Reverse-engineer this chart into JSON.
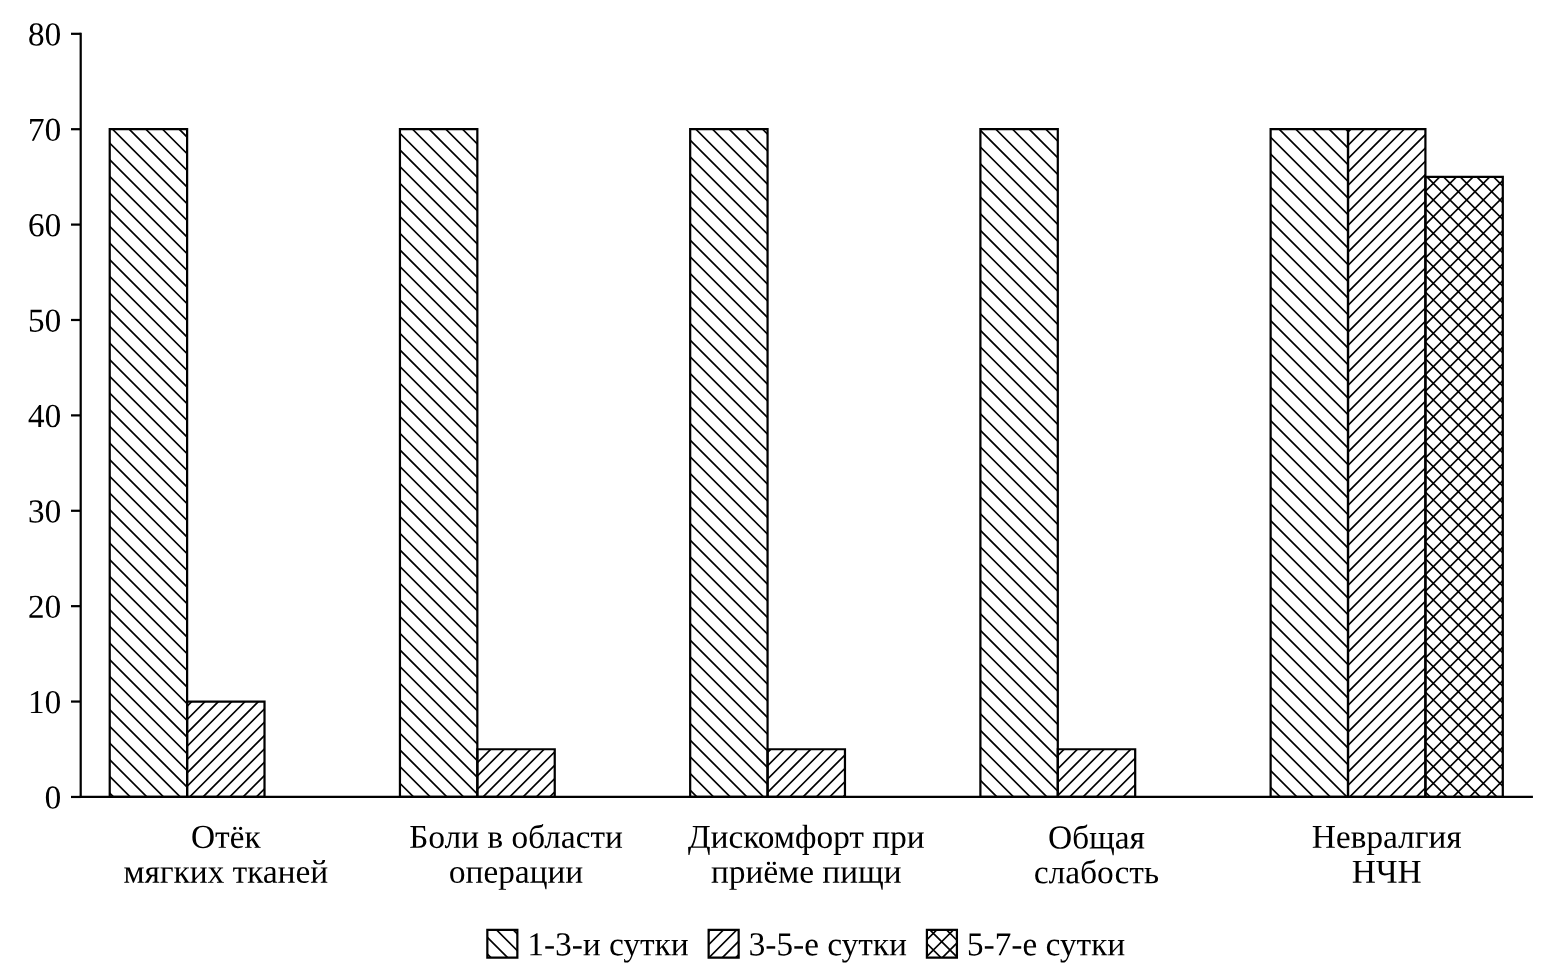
{
  "chart_data": {
    "type": "bar",
    "categories": [
      "Отёк\nмягких тканей",
      "Боли в области\nоперации",
      "Дискомфорт при\nприёме пищи",
      "Общая\nслабость",
      "Невралгия\nНЧН"
    ],
    "series": [
      {
        "name": "1-3-и сутки",
        "color": "#000000",
        "values": [
          70,
          70,
          70,
          70,
          70
        ]
      },
      {
        "name": "3-5-е сутки",
        "color": "#000000",
        "values": [
          10,
          5,
          5,
          5,
          70
        ]
      },
      {
        "name": "5-7-е сутки",
        "color": "#000000",
        "values": [
          null,
          null,
          null,
          null,
          65
        ]
      }
    ],
    "ylim": [
      0,
      80
    ],
    "yticks": [
      0,
      10,
      20,
      30,
      40,
      50,
      60,
      70,
      80
    ],
    "grid": false,
    "legend": "bottom"
  }
}
